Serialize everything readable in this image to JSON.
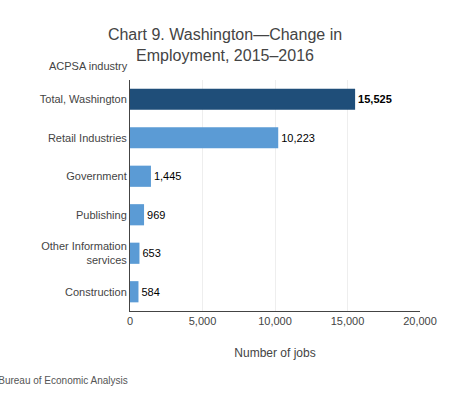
{
  "chart_data": {
    "type": "bar",
    "orientation": "horizontal",
    "title": "Chart 9. Washington—Change in\nEmployment, 2015–2016",
    "xlabel": "Number of jobs",
    "ylabel": "ACPSA industry",
    "annotations": [
      "U.S. Bureau of Economic Analysis"
    ],
    "categories": [
      "Construction",
      "Other Information\nservices",
      "Publishing",
      "Government",
      "Retail Industries",
      "Total, Washington"
    ],
    "values": [
      584,
      653,
      969,
      1445,
      10223,
      15525
    ],
    "value_labels": [
      "584",
      "653",
      "969",
      "1,445",
      "10,223",
      "15,525"
    ],
    "colors": [
      "#5B9BD5",
      "#5B9BD5",
      "#5B9BD5",
      "#5B9BD5",
      "#5B9BD5",
      "#1F4E79"
    ],
    "data_labels": true,
    "xlim": [
      0,
      20000
    ],
    "xticks": [
      0,
      {
        "value": 5000,
        "label": "5,000"
      },
      {
        "value": 10000,
        "label": "10,000"
      },
      {
        "value": 15000,
        "label": "15,000"
      },
      {
        "value": 20000,
        "label": "20,000"
      }
    ],
    "grid": true
  }
}
